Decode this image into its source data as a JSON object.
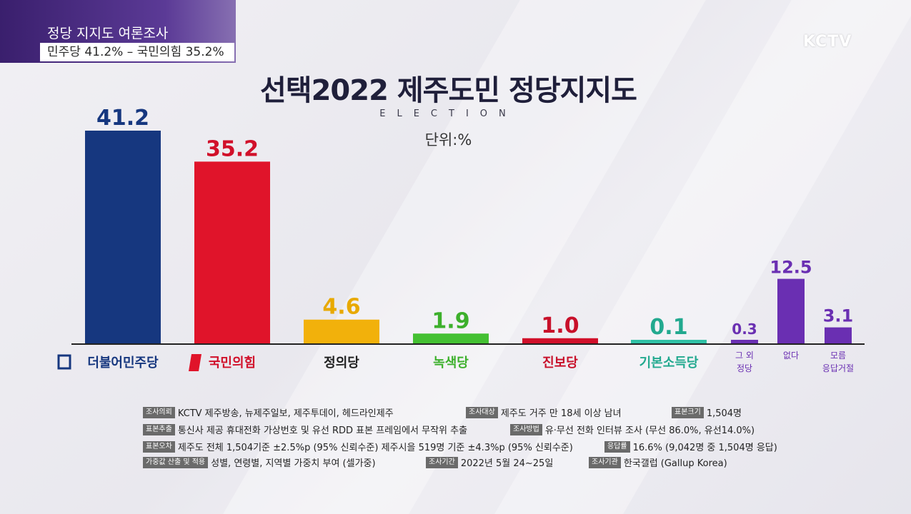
{
  "caption": {
    "line1": "정당 지지도 여론조사",
    "line2": "민주당 41.2% – 국민의힘 35.2%"
  },
  "logo": "KCTV",
  "title": "선택2022 제주도민 정당지지도",
  "subtitle": "ELECTION",
  "unit": "단위:%",
  "chart_data": {
    "type": "bar",
    "title": "선택2022 제주도민 정당지지도",
    "categories": [
      "더불어민주당",
      "국민의힘",
      "정의당",
      "녹색당",
      "진보당",
      "기본소득당",
      "그 외 정당",
      "없다",
      "모름 응답거절"
    ],
    "values": [
      41.2,
      35.2,
      4.6,
      1.9,
      1.0,
      0.1,
      0.3,
      12.5,
      3.1
    ],
    "value_labels": [
      "41.2",
      "35.2",
      "4.6",
      "1.9",
      "1.0",
      "0.1",
      "0.3",
      "12.5",
      "3.1"
    ],
    "colors": [
      "#16377f",
      "#e0142a",
      "#f2b10b",
      "#44c032",
      "#d1102a",
      "#2fc1a5",
      "#6a2fb2",
      "#6a2fb2",
      "#6a2fb2"
    ],
    "label_colors": [
      "#16377f",
      "#d1102a",
      "#e8a900",
      "#3db02c",
      "#c8102a",
      "#22a98f",
      "#6a2fb2",
      "#6a2fb2",
      "#6a2fb2"
    ],
    "unit": "%",
    "ylim": [
      0,
      41.2
    ],
    "grid": false
  },
  "info": {
    "row1": [
      {
        "tag": "조사의뢰",
        "text": "KCTV 제주방송, 뉴제주일보, 제주투데이, 헤드라인제주"
      },
      {
        "tag": "조사대상",
        "text": "제주도 거주 만 18세 이상 남녀"
      },
      {
        "tag": "표본크기",
        "text": "1,504명"
      }
    ],
    "row2": [
      {
        "tag": "표본추출",
        "text": "통신사 제공 휴대전화 가상번호 및 유선 RDD 표본 프레임에서 무작위 추출"
      },
      {
        "tag": "조사방법",
        "text": "유·무선 전화 인터뷰 조사 (무선 86.0%, 유선14.0%)"
      }
    ],
    "row3": [
      {
        "tag": "표본오차",
        "text": "제주도 전체 1,504기준 ±2.5%p (95% 신뢰수준) 제주시을 519명 기준 ±4.3%p (95% 신뢰수준)"
      },
      {
        "tag": "응답률",
        "text": "16.6% (9,042명 중 1,504명 응답)"
      }
    ],
    "row4": [
      {
        "tag": "가중값 산출 및 적용",
        "text": "성별, 연령별, 지역별 가중치 부여 (셀가중)"
      },
      {
        "tag": "조사기간",
        "text": "2022년 5월 24~25일"
      },
      {
        "tag": "조사기관",
        "text": "한국갤럽 (Gallup Korea)"
      }
    ]
  }
}
